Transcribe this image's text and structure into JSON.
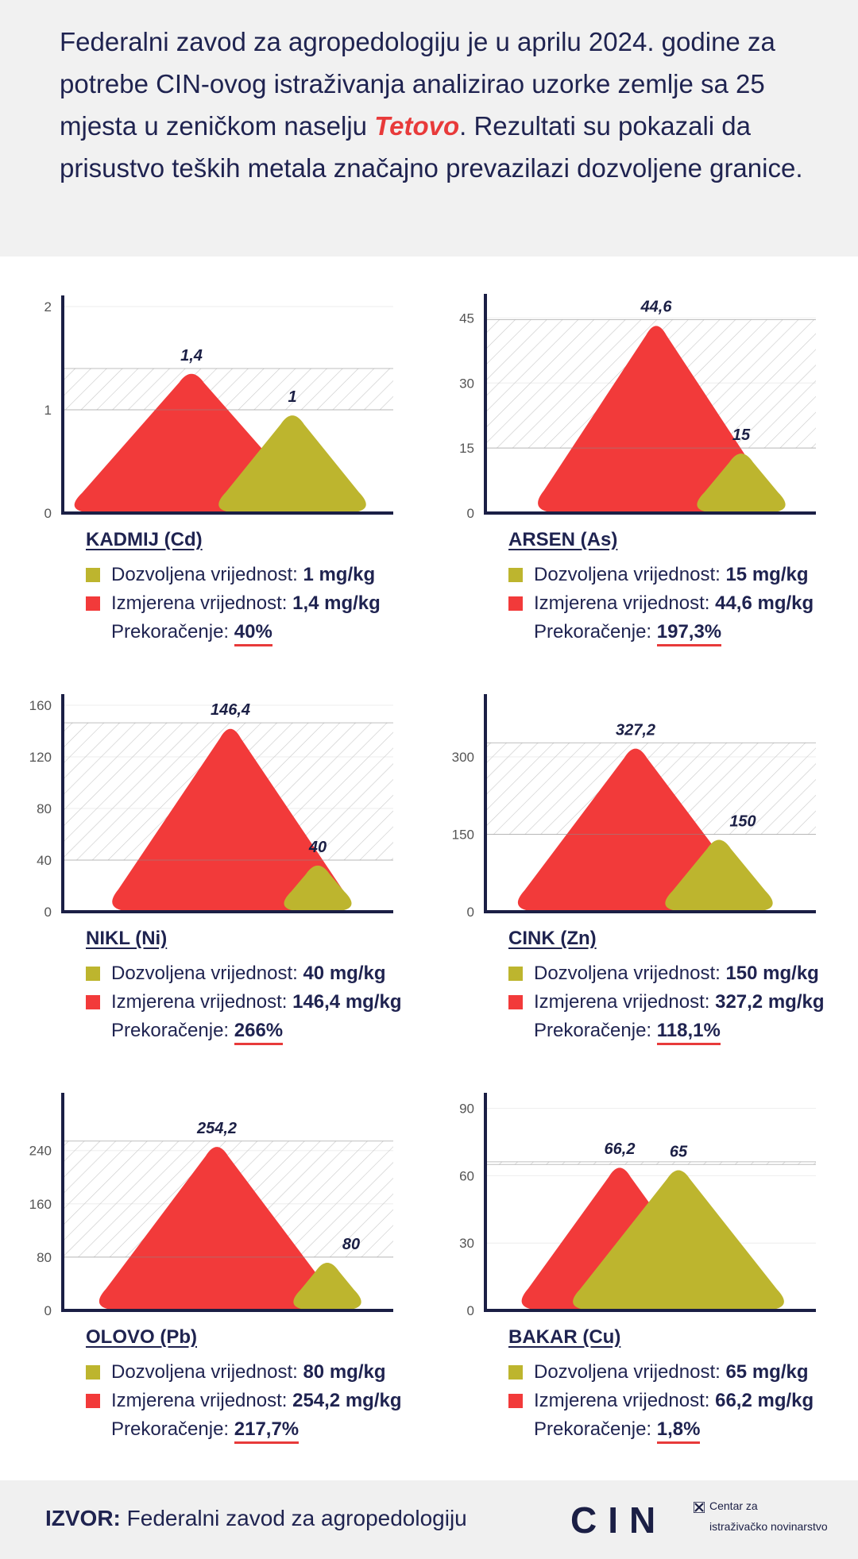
{
  "intro": {
    "text_before": "Federalni zavod za agropedologiju je u aprilu 2024. godine za potrebe CIN-ovog istraživanja analizirao uzorke zemlje sa 25 mjesta u zeničkom naselju ",
    "highlight": "Tetovo",
    "text_after": ". Rezultati su pokazali da prisustvo teških metala značajno prevazilazi dozvoljene granice."
  },
  "colors": {
    "measured": "#f23a3a",
    "allowed": "#bdb52e",
    "text": "#1f2350",
    "axis": "#1b1f45",
    "underline": "#e83a3a"
  },
  "labels": {
    "allowed": "Dozvoljena vrijednost: ",
    "measured": "Izmjerena vrijednost: ",
    "excess": "Prekoračenje: "
  },
  "chart_data": [
    {
      "type": "area",
      "title": "KADMIJ (Cd)",
      "unit": "mg/kg",
      "ylim": [
        0,
        2
      ],
      "yticks": [
        "0",
        "1",
        "2"
      ],
      "ytick_values": [
        0,
        1,
        2
      ],
      "series": [
        {
          "name": "Izmjerena vrijednost",
          "value": 1.4,
          "label": "1,4"
        },
        {
          "name": "Dozvoljena vrijednost",
          "value": 1,
          "label": "1"
        }
      ],
      "allowed_text": "1 mg/kg",
      "measured_text": "1,4 mg/kg",
      "excess_text": "40%"
    },
    {
      "type": "area",
      "title": "ARSEN (As)",
      "unit": "mg/kg",
      "ylim": [
        0,
        48
      ],
      "yticks": [
        "0",
        "15",
        "30",
        "45"
      ],
      "ytick_values": [
        0,
        15,
        30,
        45
      ],
      "series": [
        {
          "name": "Izmjerena vrijednost",
          "value": 44.6,
          "label": "44,6"
        },
        {
          "name": "Dozvoljena vrijednost",
          "value": 15,
          "label": "15"
        }
      ],
      "allowed_text": "15 mg/kg",
      "measured_text": "44,6 mg/kg",
      "excess_text": "197,3%"
    },
    {
      "type": "area",
      "title": "NIKL (Ni)",
      "unit": "mg/kg",
      "ylim": [
        0,
        160
      ],
      "yticks": [
        "0",
        "40",
        "80",
        "120",
        "160"
      ],
      "ytick_values": [
        0,
        40,
        80,
        120,
        160
      ],
      "series": [
        {
          "name": "Izmjerena vrijednost",
          "value": 146.4,
          "label": "146,4"
        },
        {
          "name": "Dozvoljena vrijednost",
          "value": 40,
          "label": "40"
        }
      ],
      "allowed_text": "40 mg/kg",
      "measured_text": "146,4 mg/kg",
      "excess_text": "266%"
    },
    {
      "type": "area",
      "title": "CINK (Zn)",
      "unit": "mg/kg",
      "ylim": [
        0,
        400
      ],
      "yticks": [
        "0",
        "150",
        "300"
      ],
      "ytick_values": [
        0,
        150,
        300
      ],
      "series": [
        {
          "name": "Izmjerena vrijednost",
          "value": 327.2,
          "label": "327,2"
        },
        {
          "name": "Dozvoljena vrijednost",
          "value": 150,
          "label": "150"
        }
      ],
      "allowed_text": "150 mg/kg",
      "measured_text": "327,2 mg/kg",
      "excess_text": "118,1%"
    },
    {
      "type": "area",
      "title": "OLOVO (Pb)",
      "unit": "mg/kg",
      "ylim": [
        0,
        310
      ],
      "yticks": [
        "0",
        "80",
        "160",
        "240"
      ],
      "ytick_values": [
        0,
        80,
        160,
        240
      ],
      "series": [
        {
          "name": "Izmjerena vrijednost",
          "value": 254.2,
          "label": "254,2"
        },
        {
          "name": "Dozvoljena vrijednost",
          "value": 80,
          "label": "80"
        }
      ],
      "allowed_text": "80 mg/kg",
      "measured_text": "254,2 mg/kg",
      "excess_text": "217,7%"
    },
    {
      "type": "area",
      "title": "BAKAR (Cu)",
      "unit": "mg/kg",
      "ylim": [
        0,
        92
      ],
      "yticks": [
        "0",
        "30",
        "60",
        "90"
      ],
      "ytick_values": [
        0,
        30,
        60,
        90
      ],
      "series": [
        {
          "name": "Izmjerena vrijednost",
          "value": 66.2,
          "label": "66,2"
        },
        {
          "name": "Dozvoljena vrijednost",
          "value": 65,
          "label": "65"
        }
      ],
      "allowed_text": "65 mg/kg",
      "measured_text": "66,2 mg/kg",
      "excess_text": "1,8%"
    }
  ],
  "footer": {
    "source_label": "IZVOR:",
    "source_text": " Federalni zavod za agropedologiju",
    "logo_text": "CIN",
    "logo_line1": "Centar za",
    "logo_line2": "istraživačko novinarstvo"
  }
}
